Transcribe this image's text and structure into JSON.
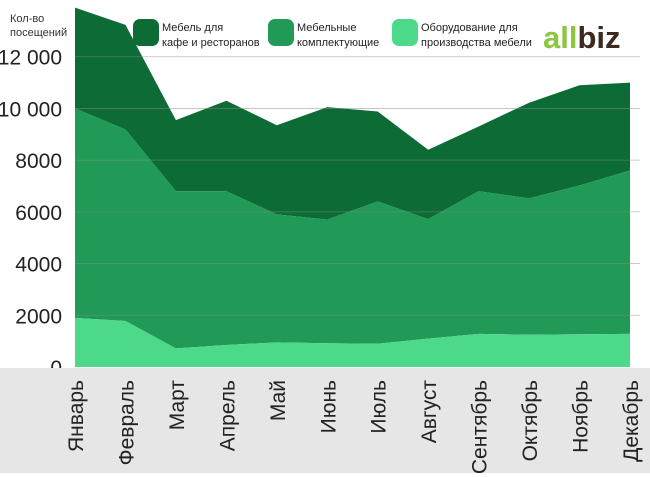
{
  "chart_data": {
    "type": "area",
    "stacked": true,
    "title": "",
    "ylabel": [
      "Кол-во",
      "посещений"
    ],
    "xlabel": "",
    "ylim": [
      0,
      14000
    ],
    "yticks": [
      0,
      2000,
      4000,
      6000,
      8000,
      10000,
      12000
    ],
    "ytick_labels": [
      "0",
      "2000",
      "4000",
      "6000",
      "8000",
      "10 000",
      "12 000"
    ],
    "grid": true,
    "legend_position": "top",
    "categories": [
      "Январь",
      "Февраль",
      "Март",
      "Апрель",
      "Май",
      "Июнь",
      "Июль",
      "Август",
      "Сентябрь",
      "Октябрь",
      "Ноябрь",
      "Декабрь"
    ],
    "series": [
      {
        "name": "Оборудование для производства мебели",
        "label_lines": [
          "Оборудование для",
          "производства мебели"
        ],
        "color": "#4dd98a",
        "values": [
          1900,
          1780,
          720,
          850,
          950,
          920,
          900,
          1100,
          1280,
          1250,
          1270,
          1280
        ]
      },
      {
        "name": "Мебельные комплектующие",
        "label_lines": [
          "Мебельные",
          "комплектующие"
        ],
        "color": "#229a57",
        "values": [
          8100,
          7400,
          6080,
          5950,
          4950,
          4780,
          5500,
          4620,
          5520,
          5270,
          5750,
          6320
        ]
      },
      {
        "name": "Мебель для кафе и ресторанов",
        "label_lines": [
          "Мебель для",
          "кафе и ресторанов"
        ],
        "color": "#0d6b35",
        "values": [
          3900,
          4050,
          2750,
          3500,
          3450,
          4350,
          3480,
          2680,
          2500,
          3700,
          3880,
          3400
        ]
      }
    ]
  },
  "brand": {
    "logo_text": "allbiz",
    "logo_prefix": "all",
    "logo_suffix": "biz",
    "logo_prefix_color": "#8cc63f",
    "logo_suffix_color": "#3d2a1e"
  }
}
